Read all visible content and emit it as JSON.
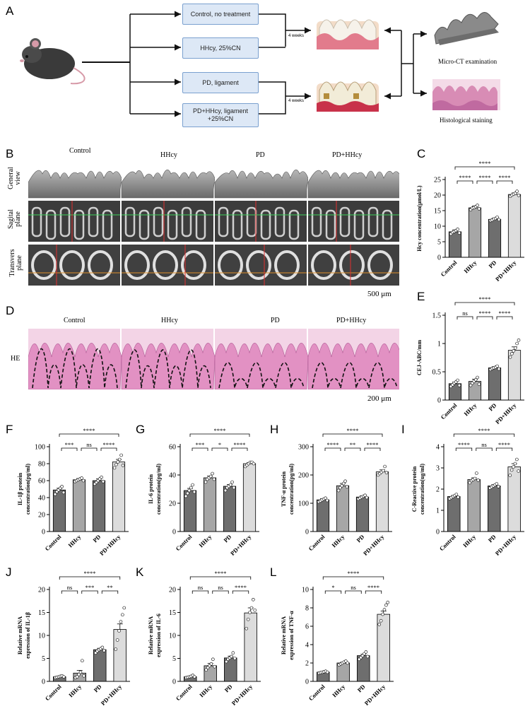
{
  "panels": {
    "A": "A",
    "B": "B",
    "C": "C",
    "D": "D",
    "E": "E",
    "F": "F",
    "G": "G",
    "H": "H",
    "I": "I",
    "J": "J",
    "K": "K",
    "L": "L"
  },
  "schematic": {
    "groups": [
      "Control, no treatment",
      "HHcy, 25%CN",
      "PD, ligament",
      "PD+HHcy, ligament\n+25%CN"
    ],
    "weeks_top": "4 weeks",
    "weeks_bottom": "4 weeks",
    "microct": "Micro-CT examination",
    "histology": "Histological staining"
  },
  "microct": {
    "columns": [
      "Control",
      "HHcy",
      "PD",
      "PD+HHcy"
    ],
    "rows": [
      "General\nview",
      "Sagital\nplane",
      "Transvers\nplane"
    ],
    "scale": "500 μm"
  },
  "he": {
    "columns": [
      "Control",
      "HHcy",
      "PD",
      "PD+HHcy"
    ],
    "row": "HE",
    "scale": "200 μm"
  },
  "colors": {
    "control": "#6e6e6e",
    "hhcy": "#a6a6a6",
    "pd": "#6e6e6e",
    "pdhhcy": "#dcdcdc"
  },
  "chart_data": [
    {
      "id": "C",
      "type": "bar",
      "categories": [
        "Control",
        "HHcy",
        "PD",
        "PD+HHcy"
      ],
      "values": [
        8.2,
        15.9,
        12.2,
        20.2
      ],
      "errors": [
        0.6,
        0.6,
        0.4,
        0.5
      ],
      "points": [
        [
          7.5,
          8.0,
          8.3,
          8.6,
          9.0,
          7.8
        ],
        [
          15.3,
          15.8,
          16.0,
          16.3,
          16.7,
          15.6
        ],
        [
          11.8,
          12.0,
          12.3,
          12.5,
          12.9,
          12.1
        ],
        [
          19.6,
          20.0,
          20.3,
          20.6,
          21.2,
          19.9
        ]
      ],
      "ylabel": "Hcy concentration(μmol/L)",
      "ylim": [
        0,
        25
      ],
      "yticks": [
        0,
        5,
        10,
        15,
        20,
        25
      ],
      "sig": [
        {
          "a": 0,
          "b": 1,
          "t": "****",
          "lvl": 0
        },
        {
          "a": 1,
          "b": 2,
          "t": "****",
          "lvl": 0
        },
        {
          "a": 2,
          "b": 3,
          "t": "****",
          "lvl": 0
        },
        {
          "a": 0,
          "b": 3,
          "t": "****",
          "lvl": 1
        }
      ]
    },
    {
      "id": "E",
      "type": "bar",
      "categories": [
        "Control",
        "HHcy",
        "PD",
        "PD+HHcy"
      ],
      "values": [
        0.29,
        0.33,
        0.57,
        0.88
      ],
      "errors": [
        0.03,
        0.04,
        0.02,
        0.06
      ],
      "points": [
        [
          0.24,
          0.27,
          0.3,
          0.32,
          0.35,
          0.26
        ],
        [
          0.26,
          0.3,
          0.33,
          0.36,
          0.4,
          0.28
        ],
        [
          0.54,
          0.56,
          0.57,
          0.58,
          0.6,
          0.55
        ],
        [
          0.76,
          0.82,
          0.87,
          0.92,
          1.0,
          1.06
        ]
      ],
      "ylabel": "CEJ-ABC/mm",
      "ylim": [
        0,
        1.5
      ],
      "yticks": [
        0.0,
        0.5,
        1.0,
        1.5
      ],
      "sig": [
        {
          "a": 0,
          "b": 1,
          "t": "ns",
          "lvl": 0
        },
        {
          "a": 1,
          "b": 2,
          "t": "****",
          "lvl": 0
        },
        {
          "a": 2,
          "b": 3,
          "t": "****",
          "lvl": 0
        },
        {
          "a": 0,
          "b": 3,
          "t": "****",
          "lvl": 1
        }
      ]
    },
    {
      "id": "F",
      "type": "bar",
      "categories": [
        "Control",
        "HHcy",
        "PD",
        "PD+HHcy"
      ],
      "values": [
        49,
        61,
        60,
        82
      ],
      "errors": [
        2,
        1.5,
        2,
        3
      ],
      "points": [
        [
          44,
          47,
          49,
          51,
          53,
          46
        ],
        [
          59,
          60,
          61,
          62,
          63,
          60
        ],
        [
          56,
          58,
          60,
          62,
          64,
          59
        ],
        [
          75,
          79,
          82,
          85,
          90,
          78
        ]
      ],
      "ylabel": "IL-1β protein\nconcentration(pg/ml)",
      "ylim": [
        0,
        100
      ],
      "yticks": [
        0,
        20,
        40,
        60,
        80,
        100
      ],
      "sig": [
        {
          "a": 0,
          "b": 1,
          "t": "***",
          "lvl": 0
        },
        {
          "a": 1,
          "b": 2,
          "t": "ns",
          "lvl": 0
        },
        {
          "a": 2,
          "b": 3,
          "t": "****",
          "lvl": 0
        },
        {
          "a": 0,
          "b": 3,
          "t": "****",
          "lvl": 1
        }
      ]
    },
    {
      "id": "G",
      "type": "bar",
      "categories": [
        "Control",
        "HHcy",
        "PD",
        "PD+HHcy"
      ],
      "values": [
        29,
        38,
        32,
        48
      ],
      "errors": [
        1.5,
        1.2,
        1.2,
        0.8
      ],
      "points": [
        [
          25,
          27,
          29,
          31,
          33,
          28
        ],
        [
          35,
          37,
          38,
          39,
          41,
          37
        ],
        [
          29,
          31,
          32,
          33,
          35,
          31
        ],
        [
          46,
          47,
          48,
          49,
          49,
          48
        ]
      ],
      "ylabel": "IL-6 protein\nconcentration(pg/ml)",
      "ylim": [
        0,
        60
      ],
      "yticks": [
        0,
        20,
        40,
        60
      ],
      "sig": [
        {
          "a": 0,
          "b": 1,
          "t": "***",
          "lvl": 0
        },
        {
          "a": 1,
          "b": 2,
          "t": "*",
          "lvl": 0
        },
        {
          "a": 2,
          "b": 3,
          "t": "****",
          "lvl": 0
        },
        {
          "a": 0,
          "b": 3,
          "t": "****",
          "lvl": 1
        }
      ]
    },
    {
      "id": "H",
      "type": "bar",
      "categories": [
        "Control",
        "HHcy",
        "PD",
        "PD+HHcy"
      ],
      "values": [
        112,
        162,
        122,
        211
      ],
      "errors": [
        4,
        8,
        4,
        7
      ],
      "points": [
        [
          105,
          108,
          112,
          115,
          118,
          110
        ],
        [
          145,
          155,
          162,
          170,
          178,
          158
        ],
        [
          115,
          118,
          122,
          125,
          128,
          120
        ],
        [
          200,
          205,
          210,
          215,
          230,
          208
        ]
      ],
      "ylabel": "TNF-α protein\nconcentration(pg/ml)",
      "ylim": [
        0,
        300
      ],
      "yticks": [
        0,
        100,
        200,
        300
      ],
      "sig": [
        {
          "a": 0,
          "b": 1,
          "t": "****",
          "lvl": 0
        },
        {
          "a": 1,
          "b": 2,
          "t": "**",
          "lvl": 0
        },
        {
          "a": 2,
          "b": 3,
          "t": "****",
          "lvl": 0
        },
        {
          "a": 0,
          "b": 3,
          "t": "****",
          "lvl": 1
        }
      ]
    },
    {
      "id": "I",
      "type": "bar",
      "categories": [
        "Control",
        "HHcy",
        "PD",
        "PD+HHcy"
      ],
      "values": [
        1.65,
        2.45,
        2.15,
        3.05
      ],
      "errors": [
        0.05,
        0.08,
        0.06,
        0.15
      ],
      "points": [
        [
          1.55,
          1.6,
          1.65,
          1.7,
          1.75,
          1.62
        ],
        [
          2.3,
          2.4,
          2.45,
          2.5,
          2.75,
          2.42
        ],
        [
          2.05,
          2.1,
          2.15,
          2.2,
          2.25,
          2.12
        ],
        [
          2.65,
          2.9,
          3.05,
          3.2,
          3.4,
          2.85
        ]
      ],
      "ylabel": "C-Reactive protein\nconcentration(ug/ml)",
      "ylim": [
        0,
        4
      ],
      "yticks": [
        0,
        1,
        2,
        3,
        4
      ],
      "sig": [
        {
          "a": 0,
          "b": 1,
          "t": "****",
          "lvl": 0
        },
        {
          "a": 1,
          "b": 2,
          "t": "ns",
          "lvl": 0
        },
        {
          "a": 2,
          "b": 3,
          "t": "****",
          "lvl": 0
        },
        {
          "a": 0,
          "b": 3,
          "t": "****",
          "lvl": 1
        }
      ]
    },
    {
      "id": "J",
      "type": "bar",
      "categories": [
        "Control",
        "HHcy",
        "PD",
        "PD+HHcy"
      ],
      "values": [
        1.0,
        1.8,
        6.9,
        11.3
      ],
      "errors": [
        0.1,
        0.6,
        0.3,
        1.2
      ],
      "points": [
        [
          0.8,
          0.9,
          1.0,
          1.1,
          1.2,
          1.0
        ],
        [
          0.8,
          1.0,
          1.5,
          2.0,
          4.5,
          1.2
        ],
        [
          6.2,
          6.6,
          6.9,
          7.1,
          7.4,
          6.7
        ],
        [
          7.0,
          9.0,
          11.0,
          13.0,
          14.5,
          16.0
        ]
      ],
      "ylabel": "Relative mRNA\nexpression of IL-1β",
      "ylim": [
        0,
        20
      ],
      "yticks": [
        0,
        5,
        10,
        15,
        20
      ],
      "sig": [
        {
          "a": 0,
          "b": 1,
          "t": "ns",
          "lvl": 0
        },
        {
          "a": 1,
          "b": 2,
          "t": "***",
          "lvl": 0
        },
        {
          "a": 2,
          "b": 3,
          "t": "**",
          "lvl": 0
        },
        {
          "a": 0,
          "b": 3,
          "t": "****",
          "lvl": 1
        }
      ]
    },
    {
      "id": "K",
      "type": "bar",
      "categories": [
        "Control",
        "HHcy",
        "PD",
        "PD+HHcy"
      ],
      "values": [
        1.0,
        3.4,
        5.1,
        14.9
      ],
      "errors": [
        0.1,
        0.5,
        0.4,
        1.1
      ],
      "points": [
        [
          0.8,
          0.9,
          1.0,
          1.1,
          1.3,
          1.0
        ],
        [
          2.5,
          3.0,
          3.4,
          3.8,
          4.8,
          3.2
        ],
        [
          4.3,
          4.8,
          5.1,
          5.4,
          6.2,
          5.0
        ],
        [
          11.5,
          13.5,
          15.0,
          16.0,
          17.8,
          15.5
        ]
      ],
      "ylabel": "Relative mRNA\nexpression of IL-6",
      "ylim": [
        0,
        20
      ],
      "yticks": [
        0,
        5,
        10,
        15,
        20
      ],
      "sig": [
        {
          "a": 0,
          "b": 1,
          "t": "ns",
          "lvl": 0
        },
        {
          "a": 1,
          "b": 2,
          "t": "ns",
          "lvl": 0
        },
        {
          "a": 2,
          "b": 3,
          "t": "****",
          "lvl": 0
        },
        {
          "a": 0,
          "b": 3,
          "t": "****",
          "lvl": 1
        }
      ]
    },
    {
      "id": "L",
      "type": "bar",
      "categories": [
        "Control",
        "HHcy",
        "PD",
        "PD+HHcy"
      ],
      "values": [
        1.0,
        2.0,
        2.8,
        7.3
      ],
      "errors": [
        0.05,
        0.1,
        0.15,
        0.35
      ],
      "points": [
        [
          0.9,
          0.95,
          1.0,
          1.05,
          1.1,
          1.0
        ],
        [
          1.8,
          1.9,
          2.0,
          2.1,
          2.2,
          2.0
        ],
        [
          2.4,
          2.6,
          2.8,
          3.0,
          3.2,
          2.7
        ],
        [
          6.2,
          6.6,
          7.3,
          7.8,
          8.3,
          8.6
        ]
      ],
      "ylabel": "Relative mRNA\nexpression of TNF-α",
      "ylim": [
        0,
        10
      ],
      "yticks": [
        0,
        2,
        4,
        6,
        8,
        10
      ],
      "sig": [
        {
          "a": 0,
          "b": 1,
          "t": "*",
          "lvl": 0
        },
        {
          "a": 1,
          "b": 2,
          "t": "ns",
          "lvl": 0
        },
        {
          "a": 2,
          "b": 3,
          "t": "****",
          "lvl": 0
        },
        {
          "a": 0,
          "b": 3,
          "t": "****",
          "lvl": 1
        }
      ]
    }
  ]
}
